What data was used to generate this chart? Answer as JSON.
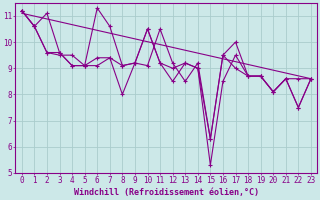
{
  "background_color": "#cce8e8",
  "grid_color": "#aacccc",
  "line_color": "#880088",
  "xlabel": "Windchill (Refroidissement éolien,°C)",
  "xlim": [
    -0.5,
    23.5
  ],
  "ylim": [
    5,
    11.5
  ],
  "xticks": [
    0,
    1,
    2,
    3,
    4,
    5,
    6,
    7,
    8,
    9,
    10,
    11,
    12,
    13,
    14,
    15,
    16,
    17,
    18,
    19,
    20,
    21,
    22,
    23
  ],
  "yticks": [
    5,
    6,
    7,
    8,
    9,
    10,
    11
  ],
  "series": [
    [
      11.2,
      10.6,
      9.6,
      9.5,
      9.5,
      9.1,
      9.1,
      9.4,
      8.0,
      9.2,
      10.5,
      9.2,
      8.5,
      9.2,
      9.0,
      5.3,
      8.5,
      9.5,
      8.7,
      8.7,
      8.1,
      8.6,
      7.5,
      8.6
    ],
    [
      11.2,
      10.6,
      11.1,
      9.6,
      9.1,
      9.1,
      11.3,
      10.6,
      9.1,
      9.2,
      9.1,
      10.5,
      9.2,
      8.5,
      9.2,
      6.3,
      9.5,
      10.0,
      8.7,
      8.7,
      8.1,
      8.6,
      8.6,
      8.6
    ],
    [
      11.2,
      10.6,
      9.6,
      9.6,
      9.1,
      9.1,
      9.4,
      9.4,
      9.1,
      9.2,
      10.5,
      9.2,
      9.0,
      9.2,
      9.0,
      6.3,
      9.5,
      9.0,
      8.7,
      8.7,
      8.1,
      8.6,
      7.5,
      8.6
    ]
  ],
  "trend": [
    11.1,
    8.6
  ],
  "font_size_label": 6,
  "font_size_tick": 5.5
}
